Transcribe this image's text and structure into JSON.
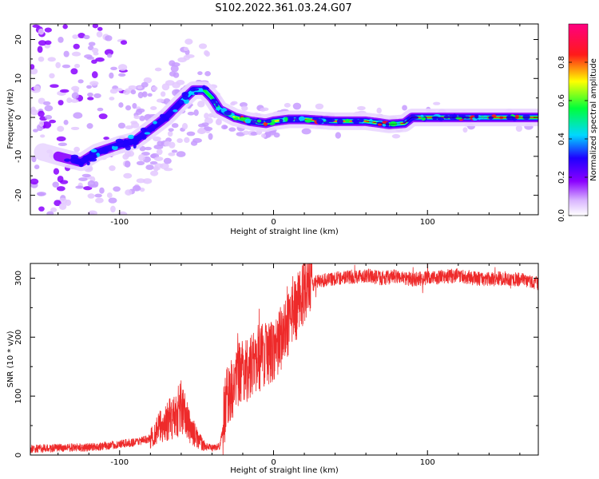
{
  "title": "S102.2022.361.03.24.G07",
  "colors": {
    "snr_line": "#ee2a2a",
    "colormap": [
      "#ffffff",
      "#9b00ff",
      "#2a00ff",
      "#00e5ff",
      "#00ff3a",
      "#ffff00",
      "#ff1a1a",
      "#ff0080"
    ]
  },
  "chart_data": [
    {
      "type": "heatmap",
      "name": "spectrogram",
      "xlabel": "Height of straight line (km)",
      "ylabel": "Frequency (Hz)",
      "xlim": [
        -158,
        172
      ],
      "ylim": [
        -25,
        24
      ],
      "x_ticks": [
        -100,
        0,
        100
      ],
      "x_tick_labels": [
        "-100",
        "0",
        "100"
      ],
      "y_ticks": [
        -20,
        -10,
        0,
        10,
        20
      ],
      "y_tick_labels": [
        "-20",
        "-10",
        "0",
        "10",
        "20"
      ],
      "ridge": {
        "x": [
          -158,
          -140,
          -125,
          -115,
          -100,
          -90,
          -80,
          -70,
          -60,
          -52,
          -45,
          -40,
          -35,
          -25,
          -15,
          -5,
          0,
          10,
          20,
          40,
          60,
          70,
          75,
          85,
          90,
          100,
          120,
          140,
          172
        ],
        "y": [
          -8,
          -10,
          -11.5,
          -9,
          -7,
          -6,
          -3,
          0,
          4,
          7,
          7,
          5,
          2,
          0,
          -1,
          -1.5,
          -1,
          -0.5,
          -0.5,
          -1,
          -1,
          -1.5,
          -1.8,
          -1.5,
          0,
          0,
          0,
          0,
          0
        ]
      },
      "colorbar": {
        "label": "Normalized spectral amplitude",
        "range": [
          0,
          1
        ],
        "ticks": [
          0.0,
          0.2,
          0.4,
          0.6,
          0.8
        ],
        "tick_labels": [
          "0.0",
          "0.2",
          "0.4",
          "0.6",
          "0.8"
        ]
      }
    },
    {
      "type": "line",
      "name": "snr",
      "xlabel": "Height of straight line (km)",
      "ylabel": "SNR (10 * v/v)",
      "xlim": [
        -158,
        172
      ],
      "ylim": [
        0,
        325
      ],
      "x_ticks": [
        -100,
        0,
        100
      ],
      "x_tick_labels": [
        "-100",
        "0",
        "100"
      ],
      "y_ticks": [
        0,
        100,
        200,
        300
      ],
      "y_tick_labels": [
        "0",
        "100",
        "200",
        "300"
      ],
      "series": [
        {
          "name": "SNR",
          "x": [
            -158,
            -140,
            -120,
            -100,
            -90,
            -80,
            -75,
            -70,
            -65,
            -62,
            -60,
            -58,
            -55,
            -50,
            -45,
            -40,
            -35,
            -33,
            -30,
            -28,
            -25,
            -20,
            -15,
            -10,
            -5,
            0,
            5,
            10,
            15,
            20,
            25,
            30,
            40,
            50,
            60,
            70,
            80,
            90,
            100,
            110,
            120,
            130,
            140,
            150,
            160,
            172
          ],
          "y": [
            10,
            12,
            13,
            18,
            22,
            28,
            45,
            55,
            65,
            75,
            85,
            70,
            50,
            30,
            15,
            12,
            15,
            45,
            110,
            100,
            130,
            140,
            150,
            160,
            170,
            180,
            200,
            220,
            250,
            280,
            290,
            295,
            300,
            302,
            305,
            300,
            303,
            298,
            300,
            302,
            305,
            300,
            298,
            300,
            297,
            292
          ]
        }
      ]
    }
  ]
}
